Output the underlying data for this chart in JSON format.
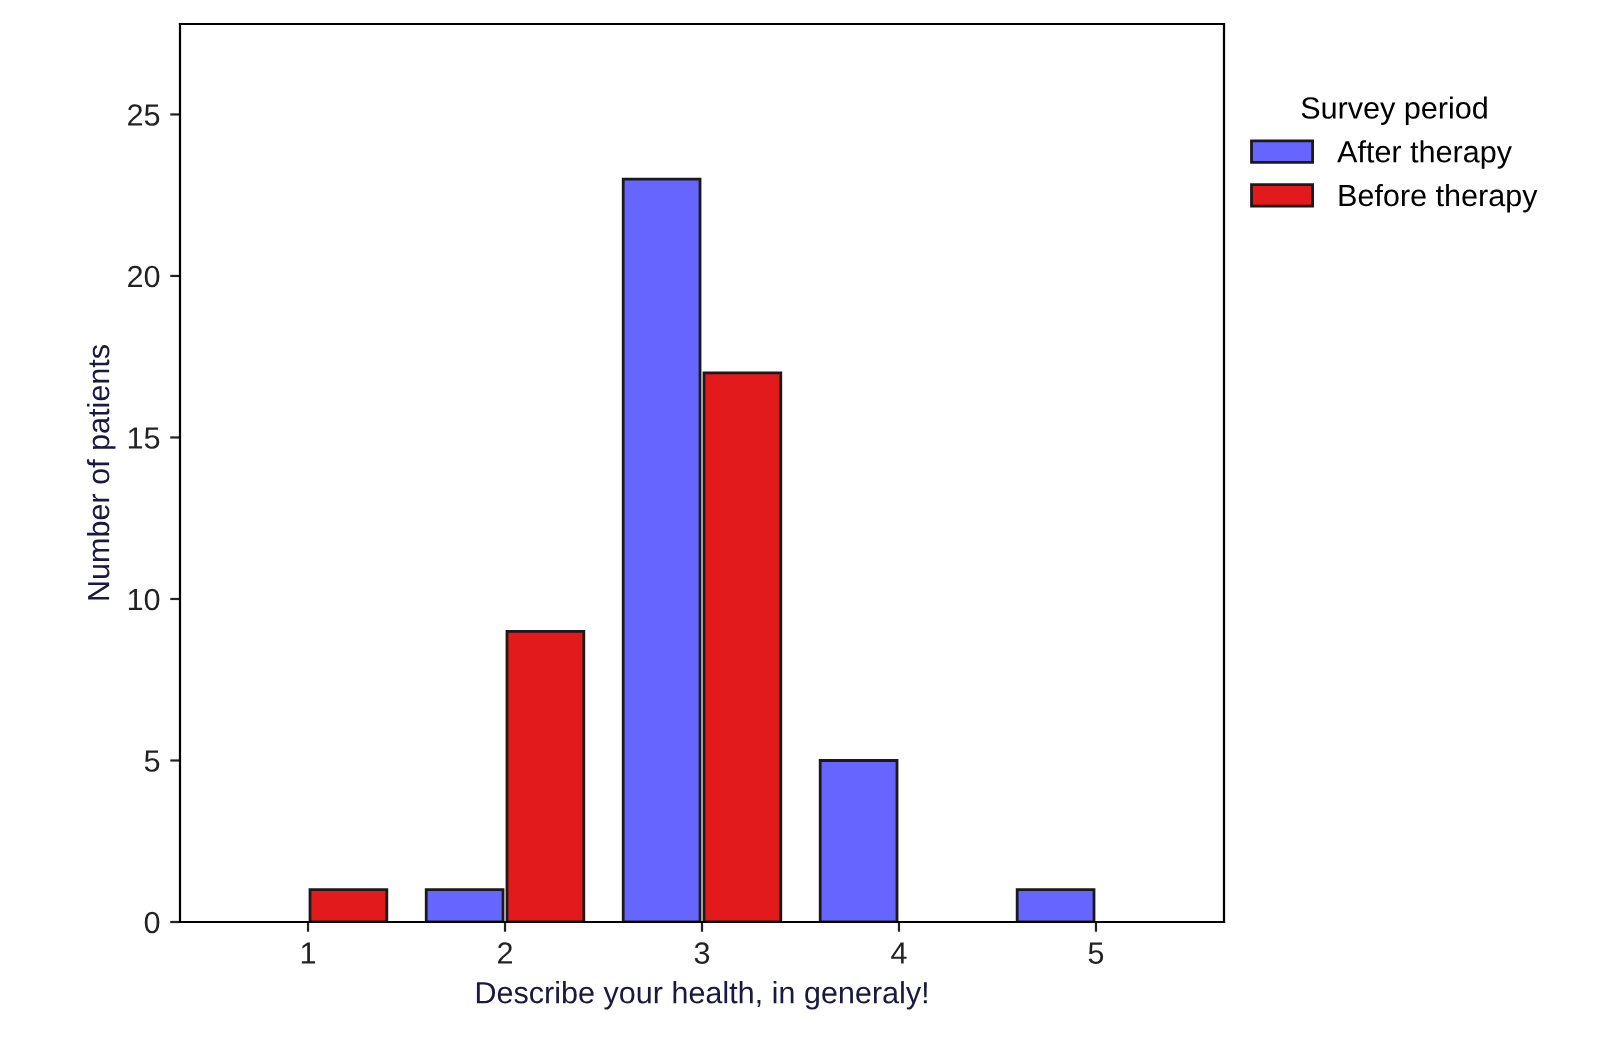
{
  "chart_data": {
    "type": "bar",
    "xlabel": "Describe your health, in generaly!",
    "ylabel": "Number of patients",
    "legend_title": "Survey period",
    "categories": [
      "1",
      "2",
      "3",
      "4",
      "5"
    ],
    "series": [
      {
        "name": "After therapy",
        "color": "#6666ff",
        "values": [
          0,
          1,
          23,
          5,
          1
        ]
      },
      {
        "name": "Before therapy",
        "color": "#e31a1c",
        "values": [
          1,
          9,
          17,
          0,
          0
        ]
      }
    ],
    "ylim": [
      0,
      27.8
    ],
    "yticks": [
      0,
      5,
      10,
      15,
      20,
      25
    ],
    "grid": false,
    "legend": "top right"
  }
}
